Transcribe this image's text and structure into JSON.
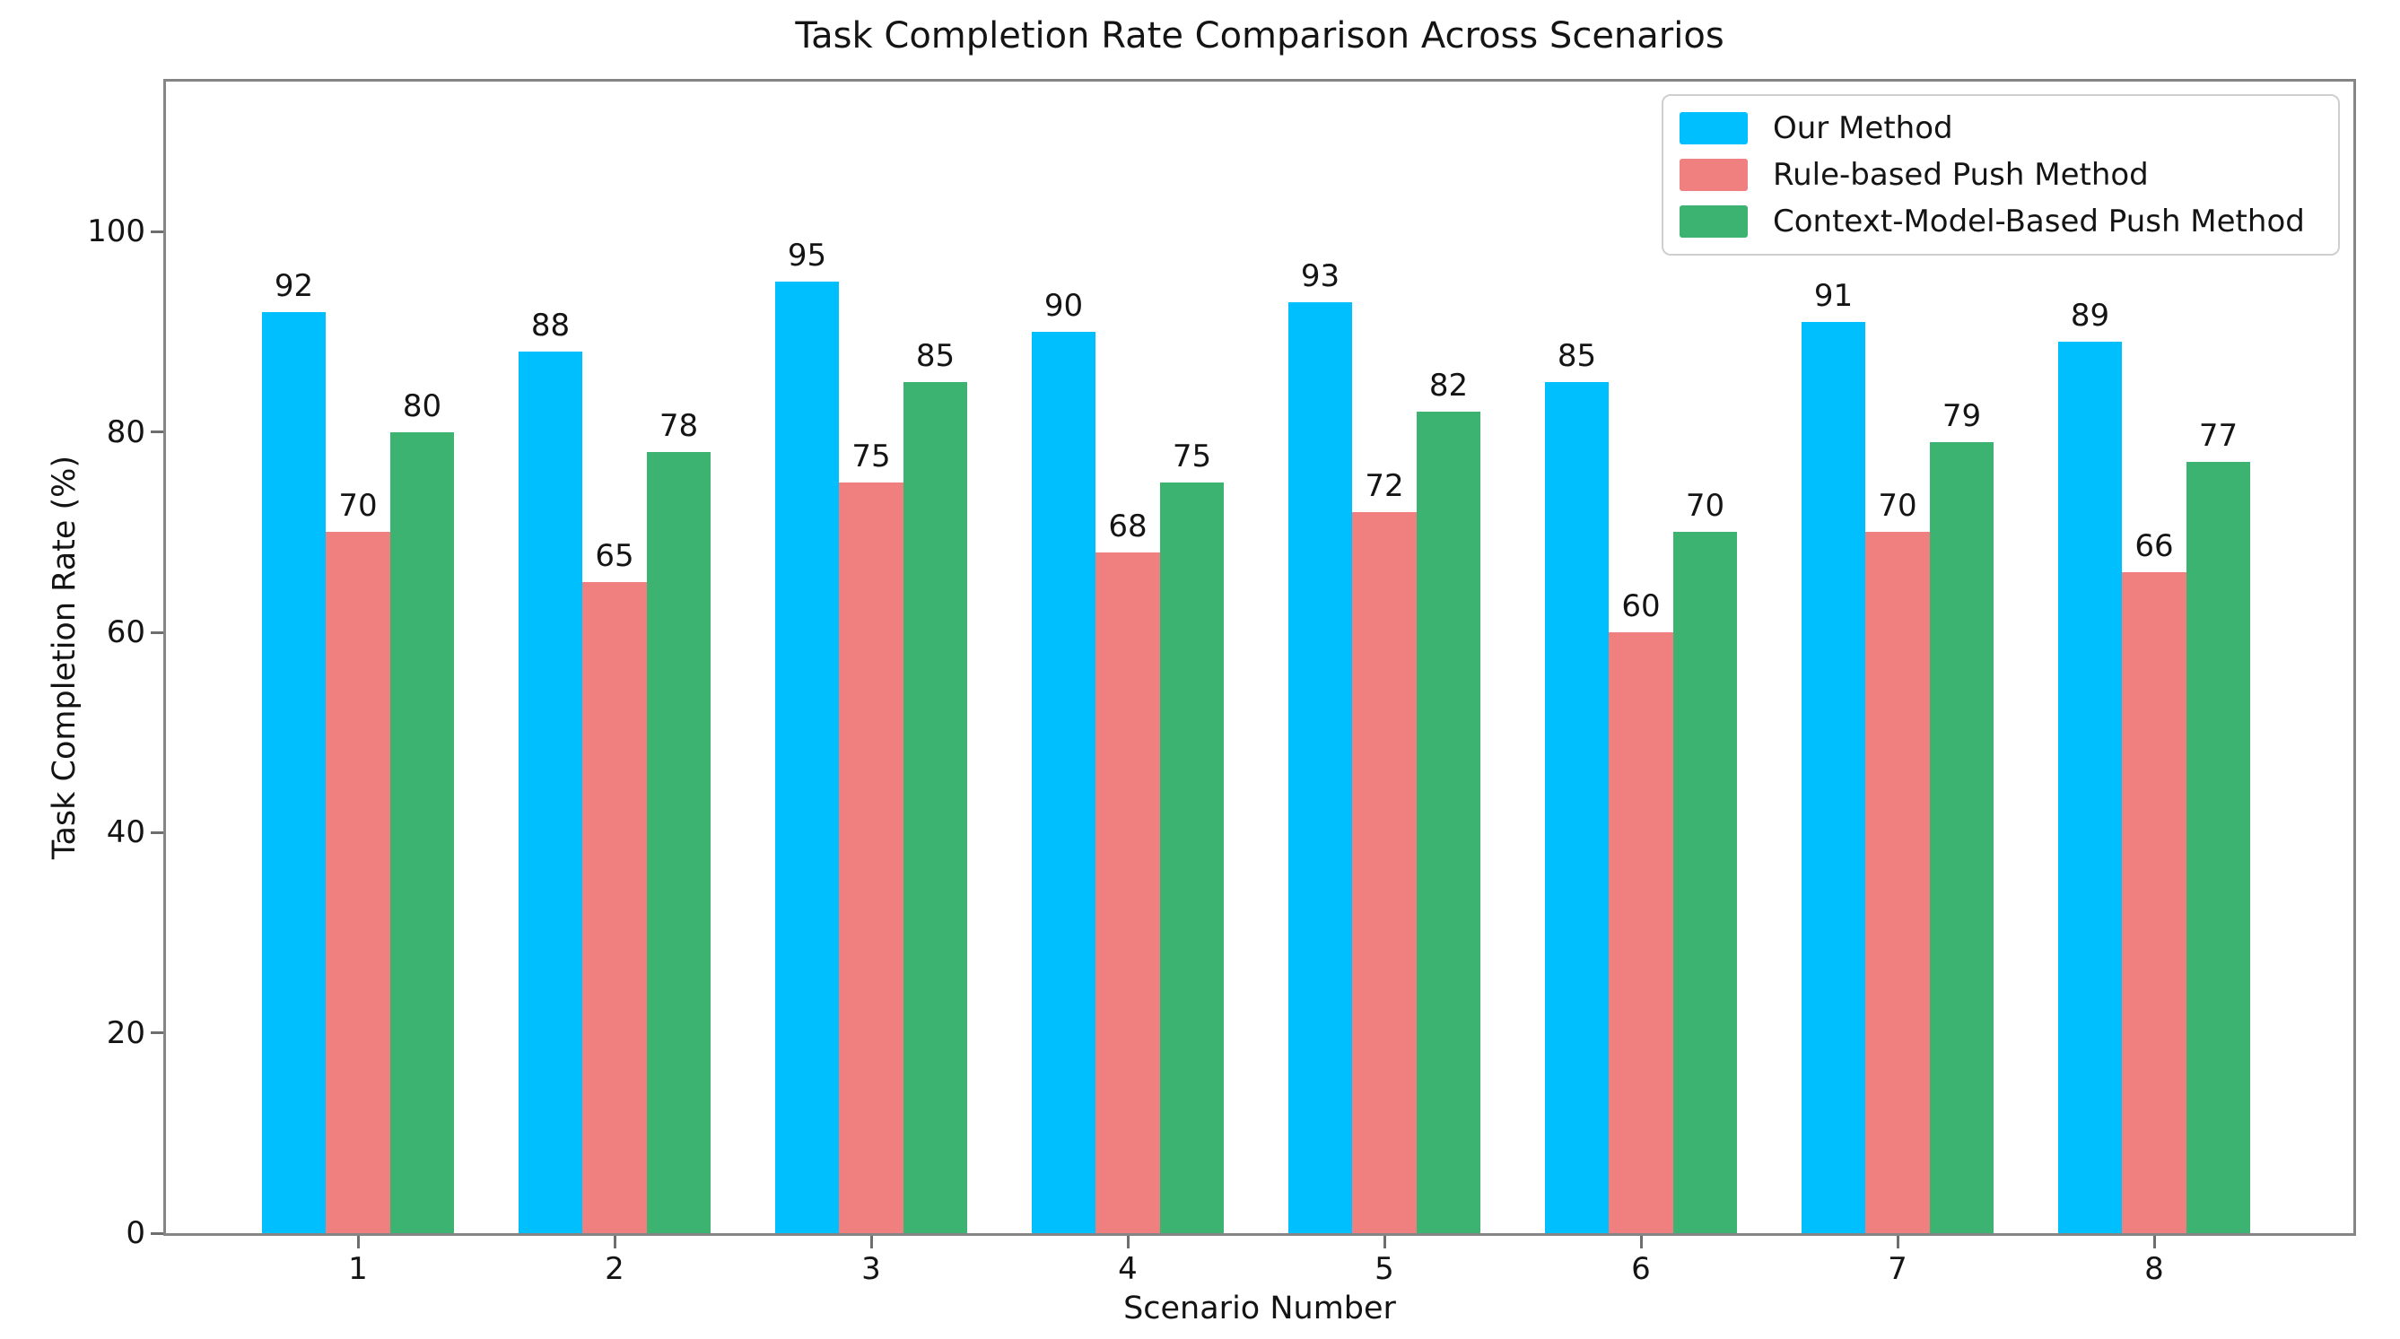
{
  "chart_data": {
    "type": "bar",
    "title": "Task Completion Rate Comparison Across Scenarios",
    "xlabel": "Scenario Number",
    "ylabel": "Task Completion Rate (%)",
    "categories": [
      "1",
      "2",
      "3",
      "4",
      "5",
      "6",
      "7",
      "8"
    ],
    "series": [
      {
        "name": "Our Method",
        "color": "#00BFFF",
        "values": [
          92,
          88,
          95,
          90,
          93,
          85,
          91,
          89
        ]
      },
      {
        "name": "Rule-based Push Method",
        "color": "#F08080",
        "values": [
          70,
          65,
          75,
          68,
          72,
          60,
          70,
          66
        ]
      },
      {
        "name": "Context-Model-Based Push Method",
        "color": "#3CB371",
        "values": [
          80,
          78,
          85,
          75,
          82,
          70,
          79,
          77
        ]
      }
    ],
    "ylim": [
      0,
      115
    ],
    "yticks": [
      0,
      20,
      40,
      60,
      80,
      100
    ],
    "grid": false,
    "legend_position": "upper right",
    "bar_value_labels": true,
    "axis_color": "#858585"
  }
}
